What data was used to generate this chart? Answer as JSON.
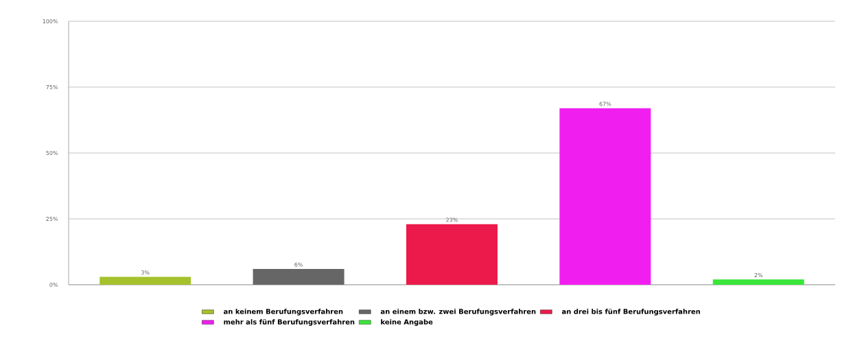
{
  "chart_data": {
    "type": "bar",
    "categories": [
      null,
      null,
      null,
      null,
      null
    ],
    "series": [
      {
        "name": "an keinem Berufungsverfahren",
        "color": "#a5c12b",
        "values": [
          3,
          null,
          null,
          null,
          null
        ],
        "value_labels": [
          "3%",
          null,
          null,
          null,
          null
        ]
      },
      {
        "name": "an einem bzw. zwei Berufungsverfahren",
        "color": "#666666",
        "values": [
          null,
          6,
          null,
          null,
          null
        ],
        "value_labels": [
          null,
          "6%",
          null,
          null,
          null
        ]
      },
      {
        "name": "an drei bis fünf Berufungsverfahren",
        "color": "#ec1a4a",
        "values": [
          null,
          null,
          23,
          null,
          null
        ],
        "value_labels": [
          null,
          null,
          "23%",
          null,
          null
        ]
      },
      {
        "name": "mehr als fünf Berufungsverfahren",
        "color": "#f01ff0",
        "values": [
          null,
          null,
          null,
          67,
          null
        ],
        "value_labels": [
          null,
          null,
          null,
          "67%",
          null
        ]
      },
      {
        "name": "keine Angabe",
        "color": "#3ae63a",
        "values": [
          null,
          null,
          null,
          null,
          2
        ],
        "value_labels": [
          null,
          null,
          null,
          null,
          "2%"
        ]
      }
    ],
    "ylim": [
      0,
      100
    ],
    "yticks": [
      {
        "value": 0,
        "label": "0%"
      },
      {
        "value": 25,
        "label": "25%"
      },
      {
        "value": 50,
        "label": "50%"
      },
      {
        "value": 75,
        "label": "75%"
      },
      {
        "value": 100,
        "label": "100%"
      }
    ],
    "grid": "y",
    "legend": "bottom"
  }
}
